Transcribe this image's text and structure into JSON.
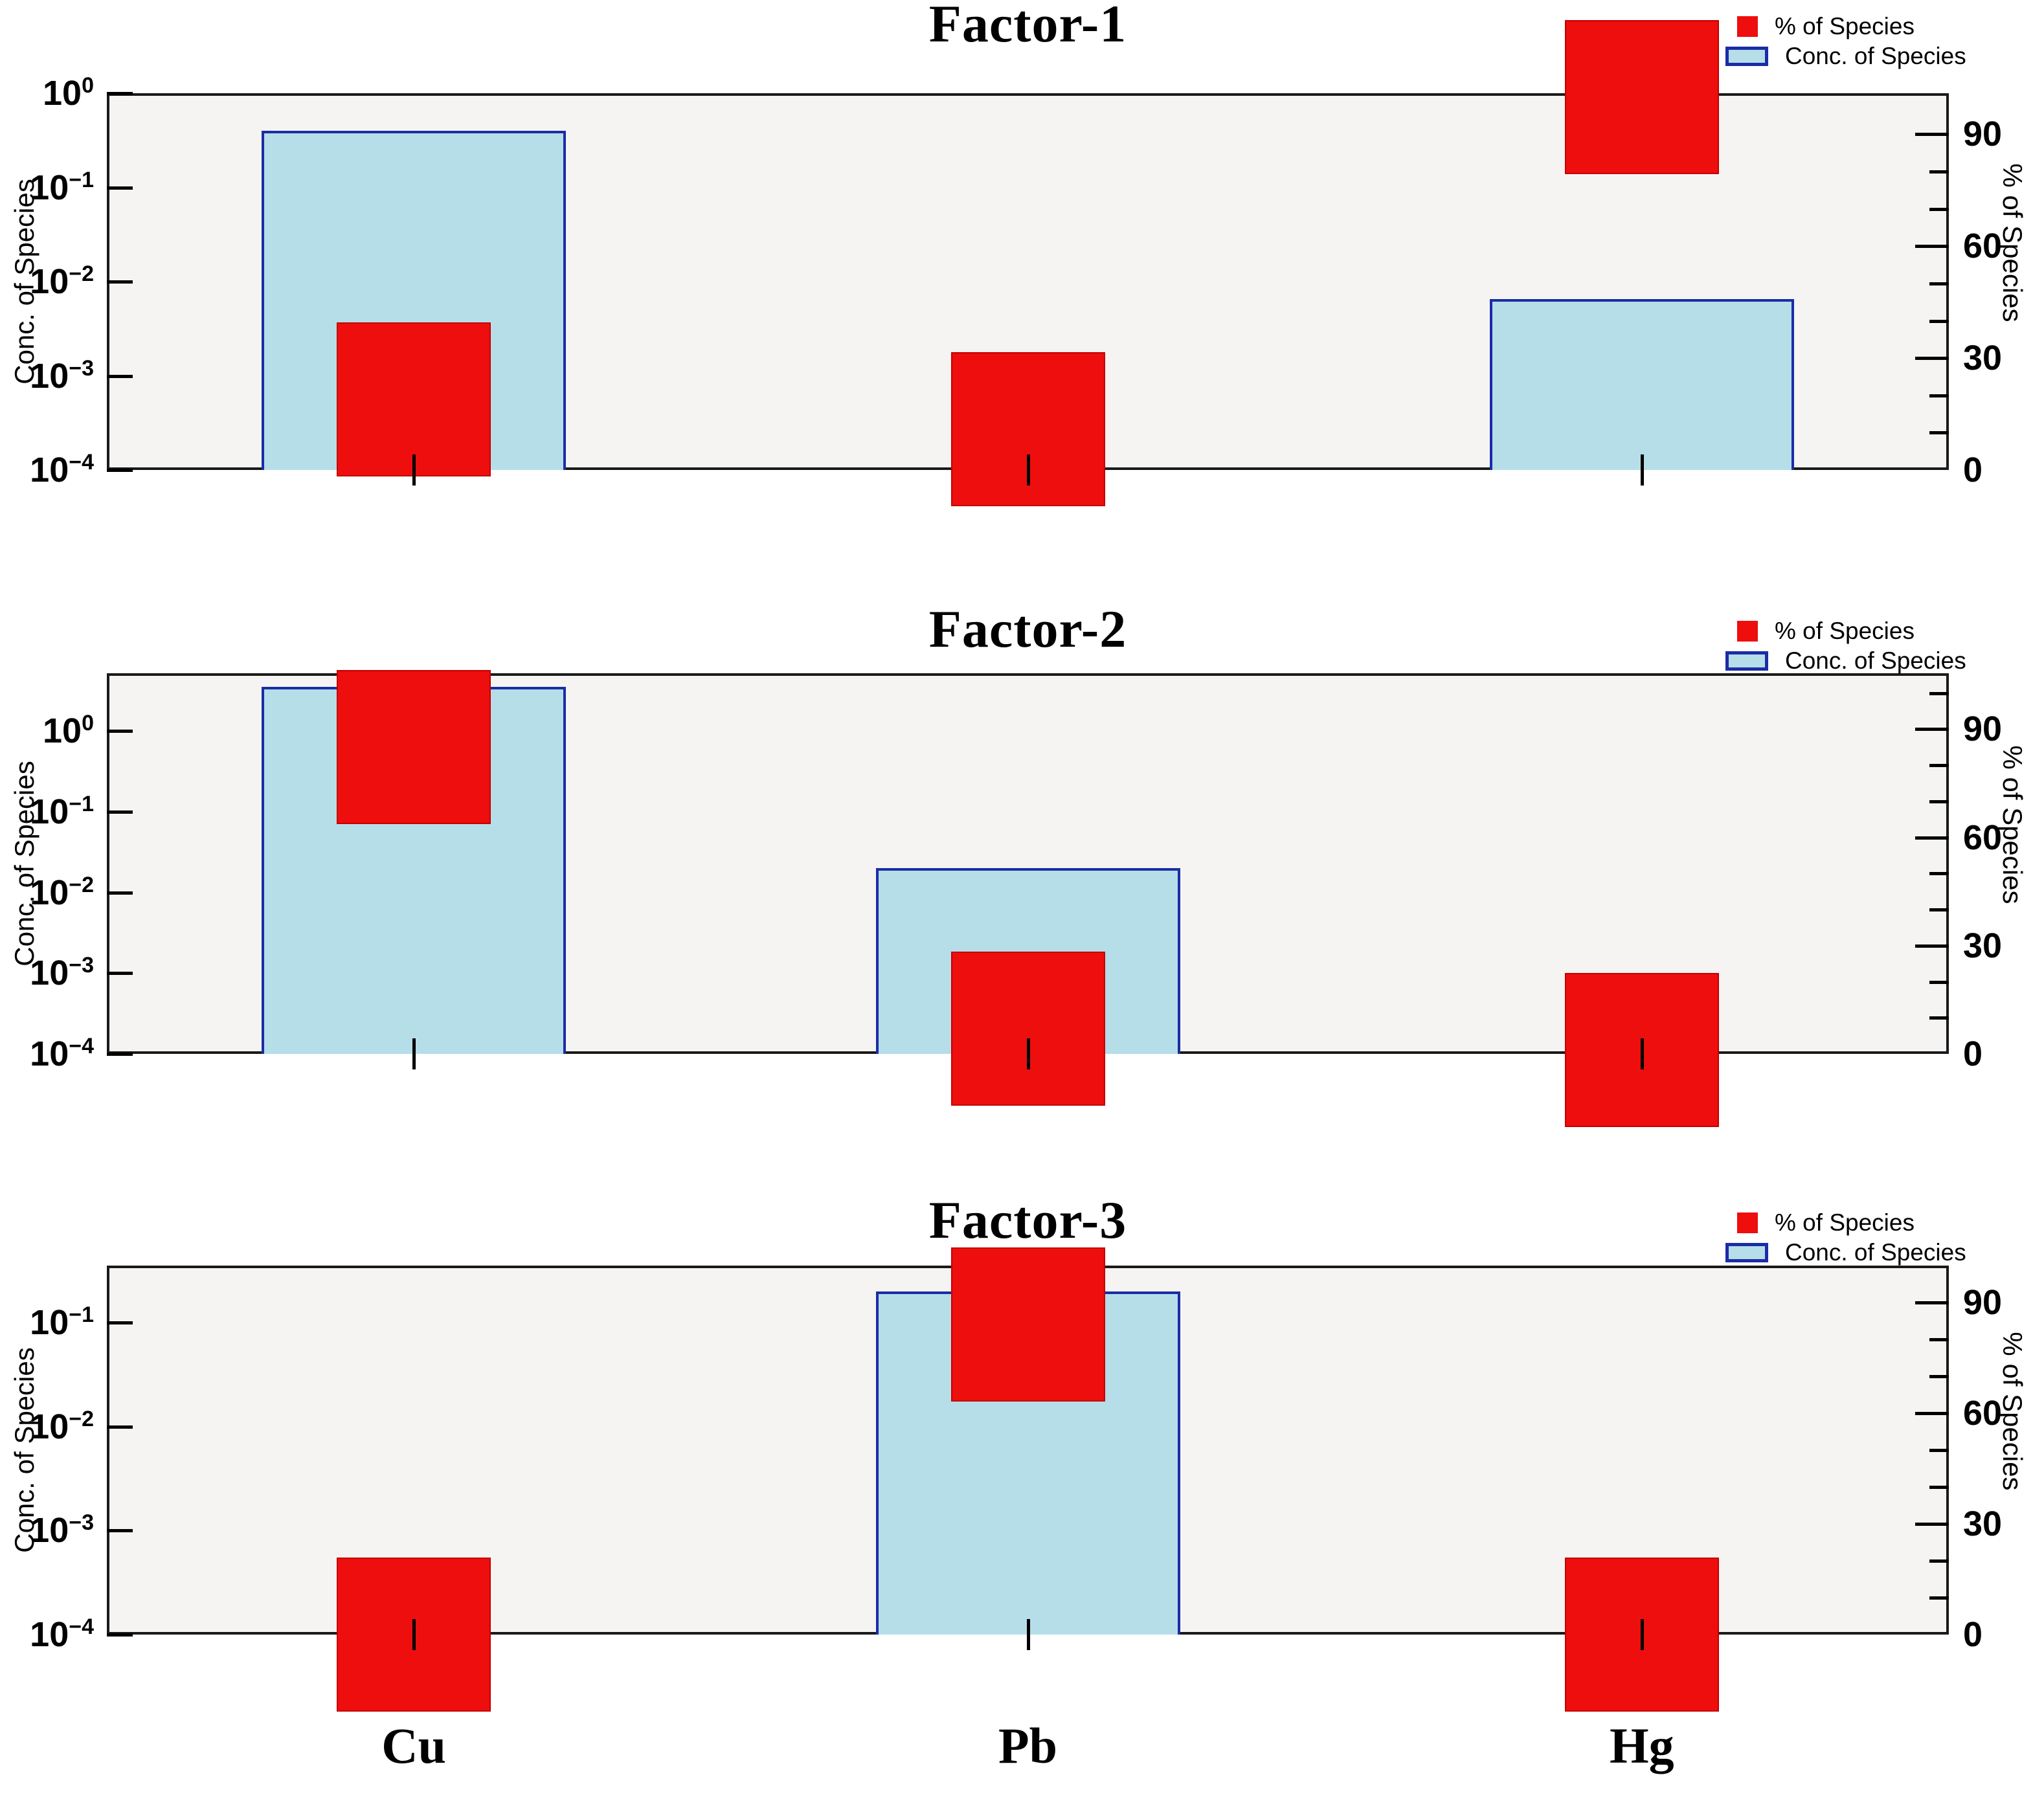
{
  "colors": {
    "red_fill": "#ee0e0e",
    "red_border": "#c40000",
    "bar_fill": "#b5dee9",
    "bar_border": "#1b2ca6",
    "panel_bg": "#f5f4f2",
    "panel_border": "#1a1a1a"
  },
  "axes": {
    "left_label": "Conc. of Species",
    "right_label": "% of Species"
  },
  "legend": {
    "items": [
      {
        "swatch": "red-square",
        "label": "% of Species"
      },
      {
        "swatch": "blue-bar",
        "label": "Conc. of Species"
      }
    ]
  },
  "chart_data": {
    "type": "bar",
    "categories": [
      "Cu",
      "Pb",
      "Hg"
    ],
    "panels": [
      {
        "title": "Factor-1",
        "left_axis": {
          "scale": "log",
          "top": 1.0,
          "bottom": 0.0001,
          "tick_exponents": [
            0,
            -1,
            -2,
            -3,
            -4
          ]
        },
        "right_axis": {
          "min": 0,
          "max": 101,
          "ticks": [
            0,
            30,
            60,
            90
          ],
          "minor_step": 10
        },
        "series": [
          {
            "name": "Conc. of Species",
            "values": [
              0.4,
              null,
              0.0065
            ]
          },
          {
            "name": "% of Species",
            "values": [
              19,
              11,
              100
            ]
          }
        ]
      },
      {
        "title": "Factor-2",
        "left_axis": {
          "scale": "log",
          "top": 5.2,
          "bottom": 0.0001,
          "tick_exponents": [
            0,
            -1,
            -2,
            -3,
            -4
          ]
        },
        "right_axis": {
          "min": 0,
          "max": 105.5,
          "ticks": [
            0,
            30,
            60,
            90
          ],
          "minor_step": 10
        },
        "series": [
          {
            "name": "Conc. of Species",
            "values": [
              3.5,
              0.02,
              null
            ]
          },
          {
            "name": "% of Species",
            "values": [
              85,
              7,
              1
            ]
          }
        ]
      },
      {
        "title": "Factor-3",
        "left_axis": {
          "scale": "log",
          "top": 0.355,
          "bottom": 0.0001,
          "tick_exponents": [
            -1,
            -2,
            -3,
            -4
          ]
        },
        "right_axis": {
          "min": 0,
          "max": 100,
          "ticks": [
            0,
            30,
            60,
            90
          ],
          "minor_step": 10
        },
        "series": [
          {
            "name": "Conc. of Species",
            "values": [
              null,
              0.2,
              null
            ]
          },
          {
            "name": "% of Species",
            "values": [
              0,
              84,
              0
            ]
          }
        ]
      }
    ]
  }
}
